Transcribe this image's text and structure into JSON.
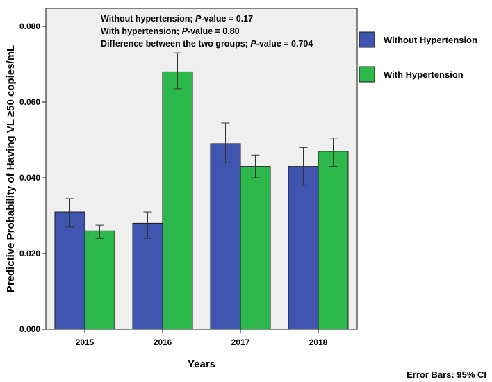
{
  "chart_data": {
    "type": "bar",
    "categories": [
      "2015",
      "2016",
      "2017",
      "2018"
    ],
    "series": [
      {
        "name": "Without Hypertension",
        "color": "#3f55b0",
        "values": [
          0.031,
          0.028,
          0.049,
          0.043
        ],
        "ci_low": [
          0.027,
          0.024,
          0.044,
          0.038
        ],
        "ci_high": [
          0.0345,
          0.031,
          0.0545,
          0.048
        ]
      },
      {
        "name": "With Hypertension",
        "color": "#2db84b",
        "values": [
          0.026,
          0.068,
          0.043,
          0.047
        ],
        "ci_low": [
          0.024,
          0.0635,
          0.04,
          0.043
        ],
        "ci_high": [
          0.0275,
          0.073,
          0.046,
          0.0505
        ]
      }
    ],
    "xlabel": "Years",
    "ylabel": "Predictive Probability of Having VL ≥50 copies/mL",
    "ylim": [
      0,
      0.08
    ],
    "yticks": [
      "0.000",
      "0.020",
      "0.040",
      "0.060",
      "0.080"
    ],
    "yticks_values": [
      0,
      0.02,
      0.04,
      0.06,
      0.08
    ],
    "annotations": [
      {
        "prefix": "Without hypertension; ",
        "p": "P",
        "suffix": "-value = 0.17"
      },
      {
        "prefix": "With hypertension; ",
        "p": "P",
        "suffix": "-value = 0.80"
      },
      {
        "prefix": "Difference between the two groups; ",
        "p": "P",
        "suffix": "-value = 0.704"
      }
    ],
    "footnote": "Error Bars: 95% CI",
    "legend_position": "right",
    "grid": false
  }
}
